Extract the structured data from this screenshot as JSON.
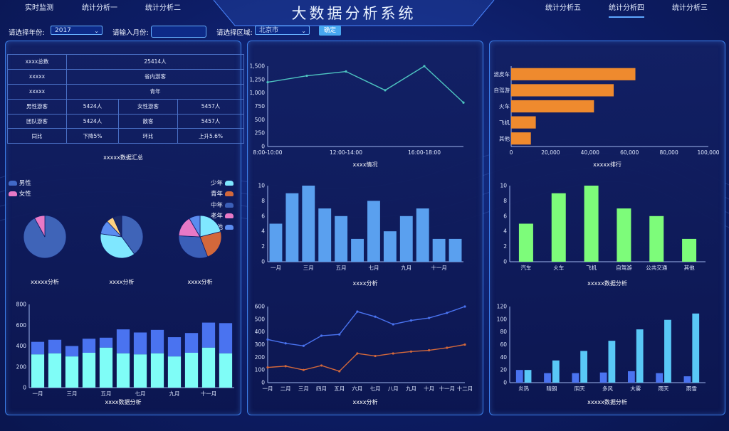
{
  "app_title": "大数据分析系统",
  "nav_left": [
    "实时监测",
    "统计分析一",
    "统计分析二"
  ],
  "nav_right": [
    "统计分析五",
    "统计分析四",
    "统计分析三"
  ],
  "nav_active": "统计分析四",
  "filters": {
    "year_label": "请选择年份:",
    "year_value": "2017",
    "month_label": "请输入月份:",
    "month_value": "",
    "region_label": "请选择区域:",
    "region_value": "北京市",
    "confirm": "确定"
  },
  "summary_table": {
    "rows": [
      [
        "xxxx总数",
        "25414人"
      ],
      [
        "xxxxx",
        "省内游客"
      ],
      [
        "xxxxx",
        "青年"
      ],
      [
        "男性游客",
        "5424人",
        "女性游客",
        "5457人"
      ],
      [
        "团队游客",
        "5424人",
        "散客",
        "5457人"
      ],
      [
        "同比",
        "下降5%",
        "环比",
        "上升5.6%"
      ]
    ],
    "caption": "xxxxx数据汇总"
  },
  "pie_section": {
    "legend_left": [
      {
        "label": "男性",
        "color": "#4169c7"
      },
      {
        "label": "女性",
        "color": "#e879c6"
      }
    ],
    "legend_right": [
      {
        "label": "少年",
        "color": "#7fe7ff"
      },
      {
        "label": "青年",
        "color": "#d3683b"
      },
      {
        "label": "中年",
        "color": "#3b5fb8"
      },
      {
        "label": "老年",
        "color": "#e879c6"
      },
      {
        "label": "其他",
        "color": "#5b8cf0"
      }
    ],
    "captions": [
      "xxxxx分析",
      "xxxx分析",
      "xxxx分析"
    ]
  },
  "chart_data": [
    {
      "id": "stack_bar_left",
      "type": "bar",
      "title": "xxxx数据分析",
      "categories": [
        "一月",
        "二月",
        "三月",
        "四月",
        "五月",
        "六月",
        "七月",
        "八月",
        "九月",
        "十月",
        "十一月",
        "十二月"
      ],
      "tick_labels": [
        "一月",
        "三月",
        "五月",
        "七月",
        "九月",
        "十一月"
      ],
      "series": [
        {
          "values": [
            320,
            330,
            300,
            335,
            385,
            330,
            320,
            330,
            300,
            335,
            385,
            330
          ],
          "color": "#7ffdf7"
        },
        {
          "values": [
            120,
            130,
            100,
            135,
            95,
            230,
            210,
            225,
            185,
            190,
            240,
            290
          ],
          "color": "#4a73f0"
        }
      ],
      "ylim": [
        0,
        800
      ],
      "yticks": [
        0,
        200,
        400,
        600,
        800
      ]
    },
    {
      "id": "pie_gender",
      "type": "pie",
      "slices": [
        {
          "label": "男性",
          "value": 92,
          "color": "#3f64b8"
        },
        {
          "label": "女性",
          "value": 8,
          "color": "#e879c6"
        }
      ]
    },
    {
      "id": "pie_mid",
      "type": "pie",
      "slices": [
        {
          "value": 30,
          "color": "#3f64b8"
        },
        {
          "value": 28,
          "color": "#7fe7ff"
        },
        {
          "value": 8,
          "color": "#5b8cf0"
        },
        {
          "value": 4,
          "color": "#ffd27f"
        },
        {
          "value": 5,
          "color": "#1a2a6a"
        }
      ]
    },
    {
      "id": "pie_age",
      "type": "pie",
      "slices": [
        {
          "label": "少年",
          "value": 20,
          "color": "#7fe7ff"
        },
        {
          "label": "青年",
          "value": 22,
          "color": "#d3683b"
        },
        {
          "label": "中年",
          "value": 30,
          "color": "#3b5fb8"
        },
        {
          "label": "老年",
          "value": 15,
          "color": "#e879c6"
        },
        {
          "label": "其他",
          "value": 8,
          "color": "#5b8cf0"
        }
      ]
    },
    {
      "id": "line_time",
      "type": "line",
      "title": "xxxx情况",
      "x": [
        "8:00-10:00",
        "10:00-12:00",
        "12:00-14:00",
        "14:00-16:00",
        "16:00-18:00",
        "18:00-20:00"
      ],
      "tick_labels": [
        "8:00-10:00",
        "12:00-14:00",
        "16:00-18:00"
      ],
      "values": [
        1200,
        1320,
        1400,
        1050,
        1500,
        820
      ],
      "ylim": [
        0,
        1500
      ],
      "yticks": [
        0,
        250,
        500,
        750,
        1000,
        1250,
        1500
      ],
      "color": "#4ec5c1"
    },
    {
      "id": "bar_month_mid",
      "type": "bar",
      "title": "xxxx分析",
      "categories": [
        "一月",
        "二月",
        "三月",
        "四月",
        "五月",
        "六月",
        "七月",
        "八月",
        "九月",
        "十月",
        "十一月",
        "十二月"
      ],
      "tick_labels": [
        "一月",
        "三月",
        "五月",
        "七月",
        "九月",
        "十一月"
      ],
      "values": [
        5,
        9,
        10,
        7,
        6,
        3,
        8,
        4,
        6,
        7,
        3,
        3
      ],
      "ylim": [
        0,
        10
      ],
      "yticks": [
        0,
        2,
        4,
        6,
        8,
        10
      ],
      "color": "#5aa0ef"
    },
    {
      "id": "line_month_mid",
      "type": "line",
      "title": "xxxx分析",
      "categories": [
        "一月",
        "二月",
        "三月",
        "四月",
        "五月",
        "六月",
        "七月",
        "八月",
        "九月",
        "十月",
        "十一月",
        "十二月"
      ],
      "series": [
        {
          "values": [
            340,
            310,
            290,
            370,
            380,
            560,
            520,
            460,
            490,
            510,
            550,
            600
          ],
          "color": "#4a73f0"
        },
        {
          "values": [
            120,
            130,
            100,
            135,
            90,
            230,
            210,
            230,
            245,
            255,
            275,
            300
          ],
          "color": "#d3683b"
        }
      ],
      "ylim": [
        0,
        600
      ],
      "yticks": [
        0,
        100,
        200,
        300,
        400,
        500,
        600
      ]
    },
    {
      "id": "hbar_rank",
      "type": "bar",
      "title": "xxxxx排行",
      "categories": [
        "滤皮车",
        "自驾游",
        "火车",
        "飞机",
        "其他"
      ],
      "values": [
        63000,
        52000,
        42000,
        12500,
        10000
      ],
      "xlim": [
        0,
        100000
      ],
      "xticks": [
        "0",
        "20,000",
        "40,000",
        "60,000",
        "80,000",
        "100,000"
      ],
      "color": "#ef8a2e"
    },
    {
      "id": "bar_transport",
      "type": "bar",
      "title": "xxxxx数据分析",
      "categories": [
        "汽车",
        "火车",
        "飞机",
        "自驾游",
        "公共交通",
        "其他"
      ],
      "values": [
        5,
        9,
        10,
        7,
        6,
        3
      ],
      "ylim": [
        0,
        10
      ],
      "yticks": [
        0,
        2,
        4,
        6,
        8,
        10
      ],
      "color": "#7dfc7a"
    },
    {
      "id": "bar_weather",
      "type": "bar",
      "title": "xxxxx数据分析",
      "categories": [
        "炎热",
        "晴朗",
        "阴天",
        "多风",
        "大雾",
        "雨天",
        "雨雪"
      ],
      "series": [
        {
          "values": [
            20,
            15,
            15,
            16,
            18,
            15,
            10
          ],
          "color": "#4a73f0"
        },
        {
          "values": [
            20,
            35,
            50,
            66,
            84,
            99,
            109
          ],
          "color": "#59c8f6"
        }
      ],
      "ylim": [
        0,
        120
      ],
      "yticks": [
        0,
        20,
        40,
        60,
        80,
        100,
        120
      ]
    }
  ]
}
